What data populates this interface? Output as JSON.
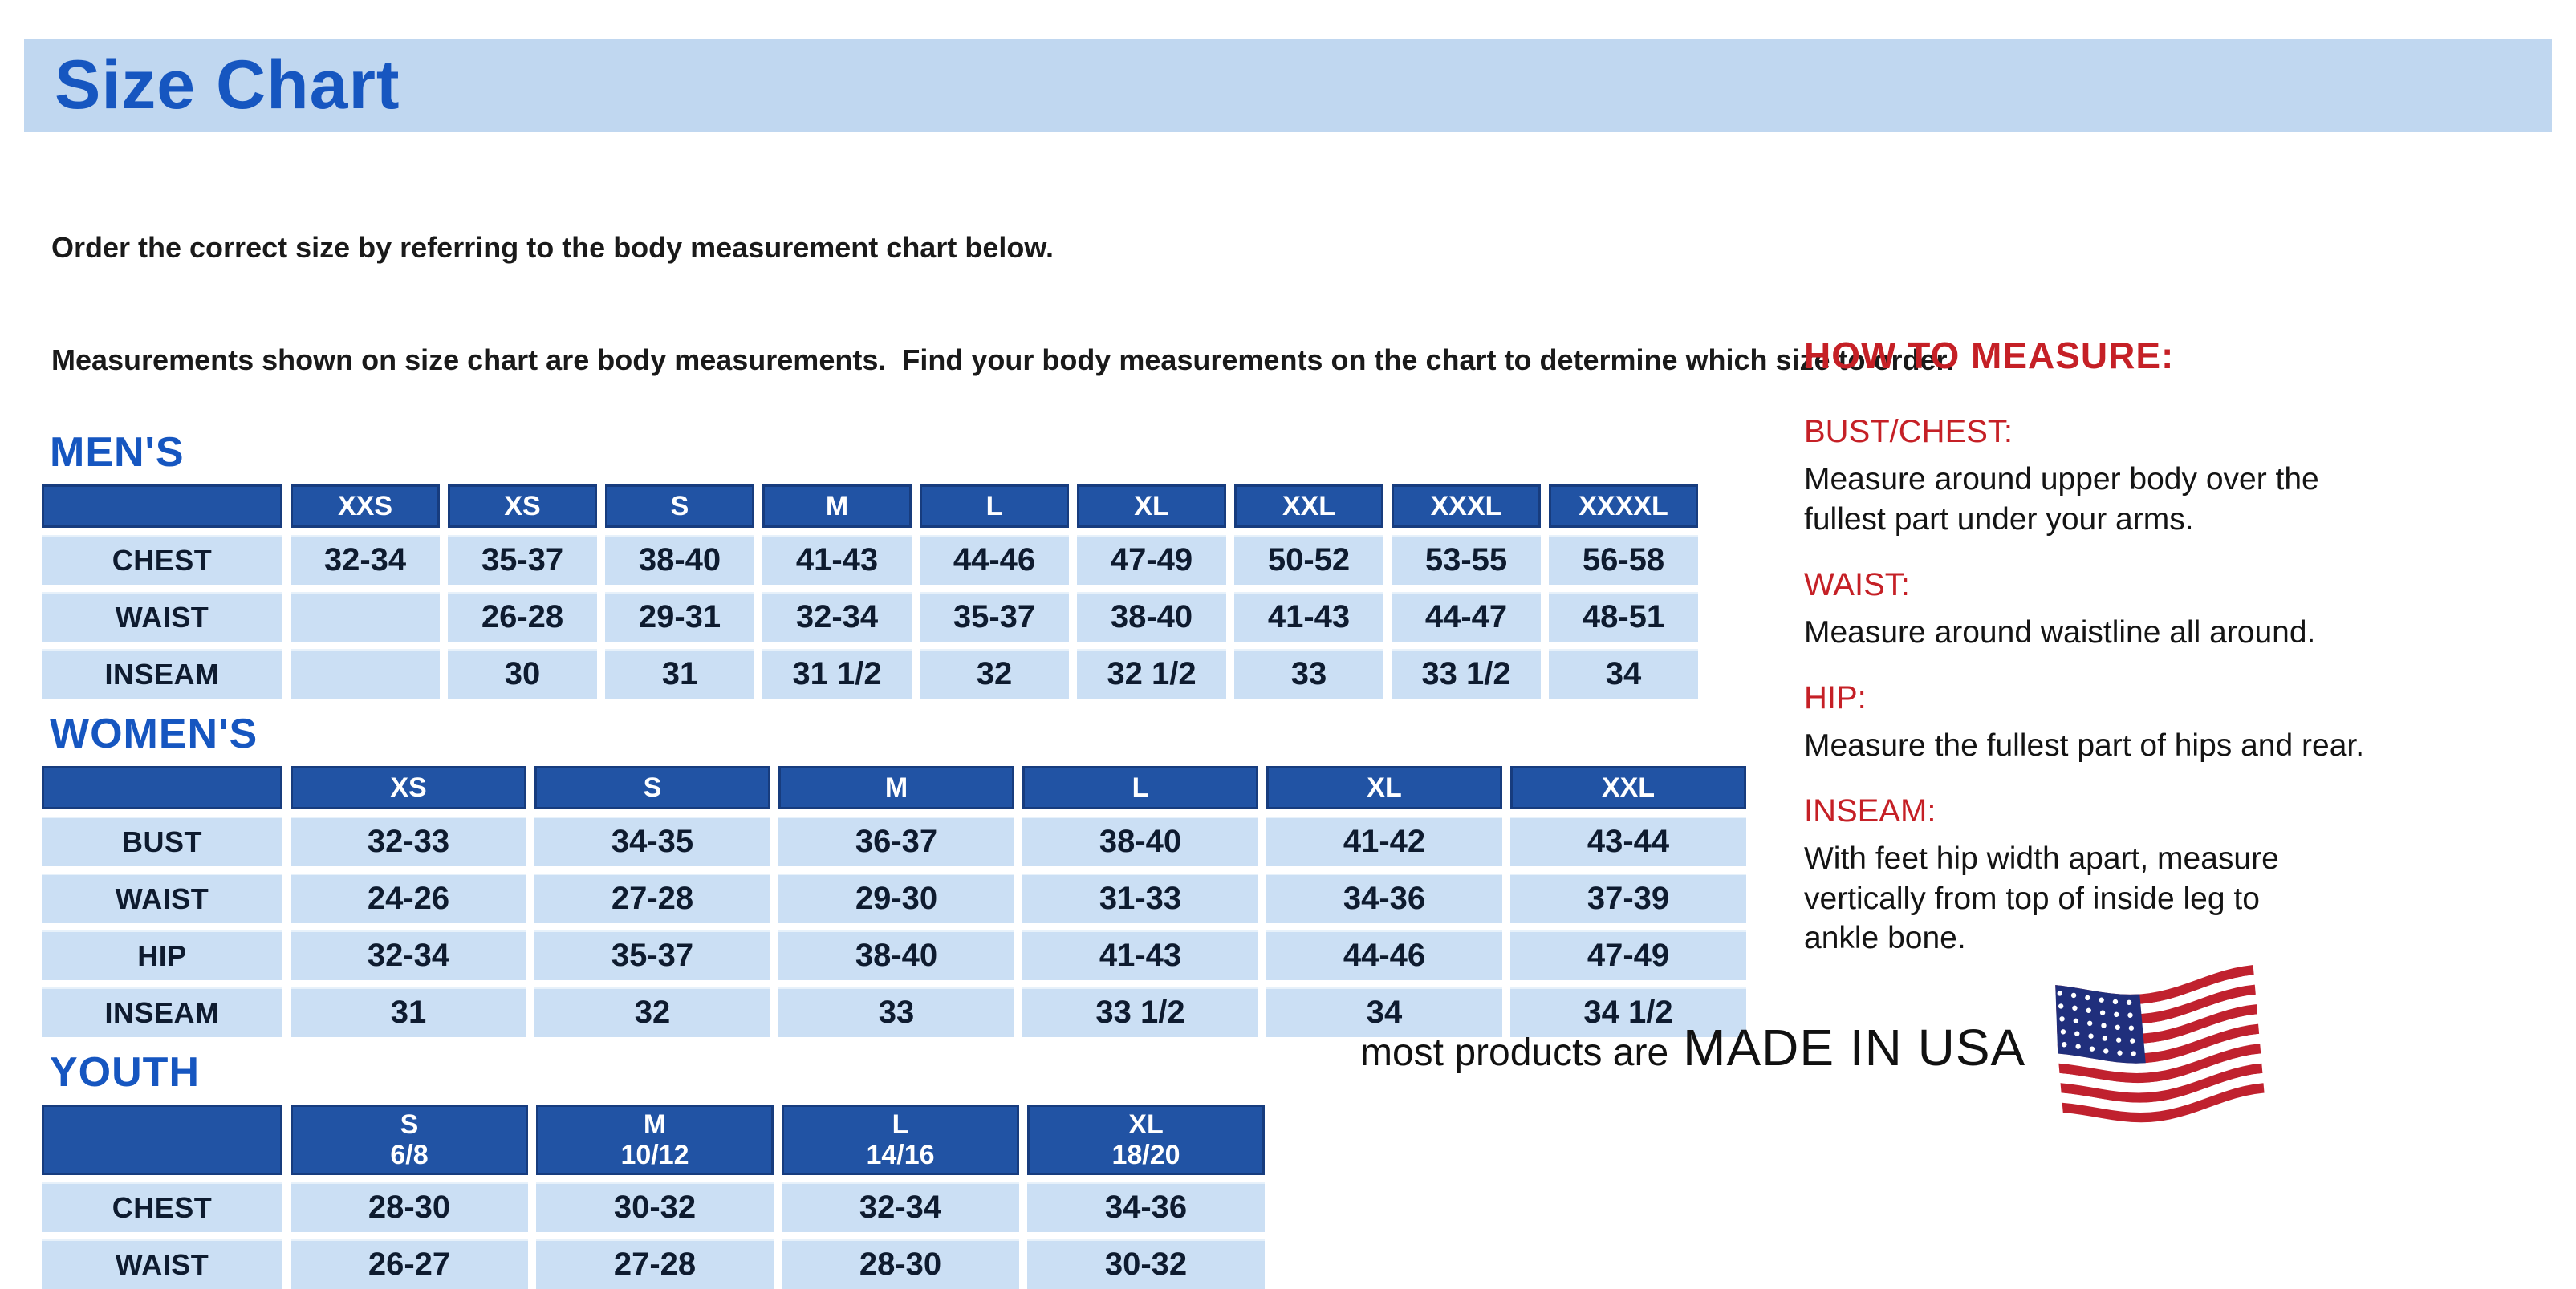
{
  "colors": {
    "banner_bg": "#c0d7f0",
    "title_blue": "#1656c0",
    "section_blue": "#1656c0",
    "header_blue": "#2153a4",
    "cell_bg": "#cbdff4",
    "accent_red": "#c52026",
    "flag_red": "#c0212e",
    "flag_blue": "#202f7c"
  },
  "page": {
    "title": "Size Chart",
    "intro_line1": "Order the correct size by referring to the body measurement chart below.",
    "intro_line2": "Measurements shown on size chart are body measurements.  Find your body measurements on the chart to determine which size to order."
  },
  "tables": [
    {
      "id": "mens",
      "section_label": "MEN'S",
      "columns": [
        "XXS",
        "XS",
        "S",
        "M",
        "L",
        "XL",
        "XXL",
        "XXXL",
        "XXXXL"
      ],
      "rows": [
        {
          "label": "CHEST",
          "values": [
            "32-34",
            "35-37",
            "38-40",
            "41-43",
            "44-46",
            "47-49",
            "50-52",
            "53-55",
            "56-58"
          ]
        },
        {
          "label": "WAIST",
          "values": [
            "",
            "26-28",
            "29-31",
            "32-34",
            "35-37",
            "38-40",
            "41-43",
            "44-47",
            "48-51"
          ]
        },
        {
          "label": "INSEAM",
          "values": [
            "",
            "30",
            "31",
            "31 1/2",
            "32",
            "32 1/2",
            "33",
            "33 1/2",
            "34"
          ]
        }
      ]
    },
    {
      "id": "womens",
      "section_label": "WOMEN'S",
      "columns": [
        "XS",
        "S",
        "M",
        "L",
        "XL",
        "XXL"
      ],
      "rows": [
        {
          "label": "BUST",
          "values": [
            "32-33",
            "34-35",
            "36-37",
            "38-40",
            "41-42",
            "43-44"
          ]
        },
        {
          "label": "WAIST",
          "values": [
            "24-26",
            "27-28",
            "29-30",
            "31-33",
            "34-36",
            "37-39"
          ]
        },
        {
          "label": "HIP",
          "values": [
            "32-34",
            "35-37",
            "38-40",
            "41-43",
            "44-46",
            "47-49"
          ]
        },
        {
          "label": "INSEAM",
          "values": [
            "31",
            "32",
            "33",
            "33 1/2",
            "34",
            "34 1/2"
          ]
        }
      ]
    },
    {
      "id": "youth",
      "section_label": "YOUTH",
      "columns": [
        {
          "size": "S",
          "range": "6/8"
        },
        {
          "size": "M",
          "range": "10/12"
        },
        {
          "size": "L",
          "range": "14/16"
        },
        {
          "size": "XL",
          "range": "18/20"
        }
      ],
      "rows": [
        {
          "label": "CHEST",
          "values": [
            "28-30",
            "30-32",
            "32-34",
            "34-36"
          ]
        },
        {
          "label": "WAIST",
          "values": [
            "26-27",
            "27-28",
            "28-30",
            "30-32"
          ]
        }
      ]
    }
  ],
  "how_to_measure": {
    "title": "HOW TO MEASURE:",
    "items": [
      {
        "label": "BUST/CHEST:",
        "text": "Measure around upper body over the\nfullest part under your arms."
      },
      {
        "label": "WAIST:",
        "text": "Measure around waistline all around."
      },
      {
        "label": "HIP:",
        "text": "Measure the fullest part of hips and rear."
      },
      {
        "label": "INSEAM:",
        "text": "With feet hip width apart, measure\nvertically from top of inside leg to\nankle bone."
      }
    ]
  },
  "footer": {
    "prefix": "most products are",
    "emphasis": "MADE IN USA",
    "flag_icon": "us-flag-icon"
  }
}
